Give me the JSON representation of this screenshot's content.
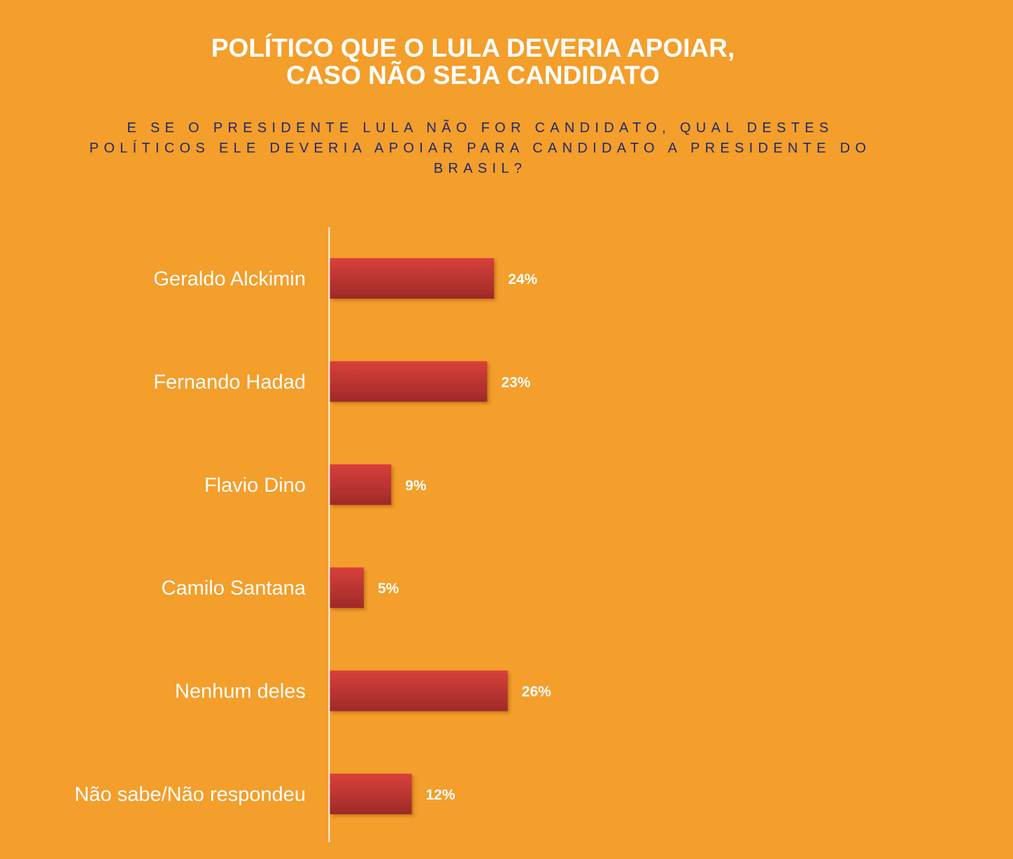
{
  "title_line1": "POLÍTICO QUE O LULA DEVERIA APOIAR,",
  "title_line2": "CASO NÃO SEJA CANDIDATO",
  "subtitle": [
    "E SE O PRESIDENTE LULA NÃO FOR CANDIDATO, QUAL DESTES",
    "POLÍTICOS ELE DEVERIA APOIAR PARA CANDIDATO A PRESIDENTE DO",
    "BRASIL?"
  ],
  "colors": {
    "background": "#f49e2b",
    "bar_top": "#d8403a",
    "bar_bottom": "#9e2a28",
    "subtitle": "#1f2a6b",
    "axis": "#f4f4f4"
  },
  "chart_data": {
    "type": "bar",
    "orientation": "horizontal",
    "title": "POLÍTICO QUE O LULA DEVERIA APOIAR, CASO NÃO SEJA CANDIDATO",
    "xlabel": "",
    "ylabel": "",
    "categories": [
      "Geraldo Alckimin",
      "Fernando Hadad",
      "Flavio Dino",
      "Camilo Santana",
      "Nenhum deles",
      "Não sabe/Não respondeu"
    ],
    "values": [
      24,
      23,
      9,
      5,
      26,
      12
    ],
    "value_labels": [
      "24%",
      "23%",
      "9%",
      "5%",
      "26%",
      "12%"
    ],
    "xlim": [
      0,
      100
    ],
    "grid": false,
    "legend": "none"
  }
}
